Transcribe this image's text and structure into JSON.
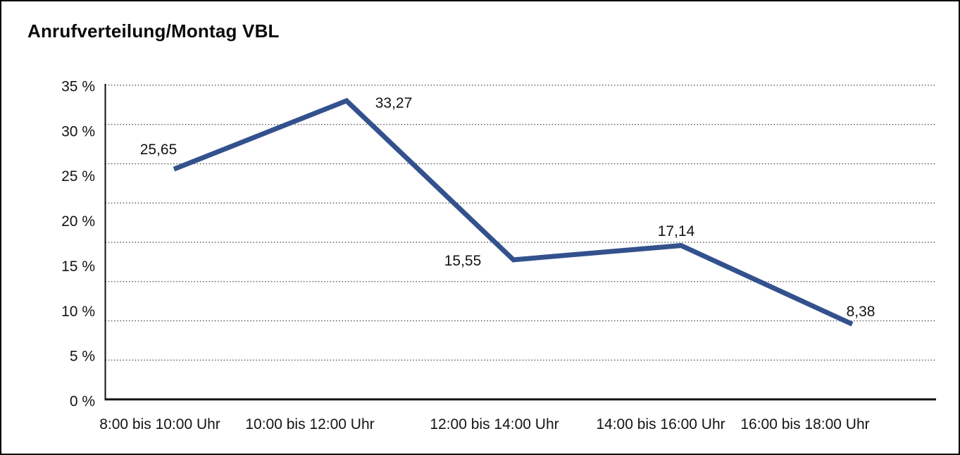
{
  "chart_data": {
    "type": "line",
    "title": "Anrufverteilung/Montag VBL",
    "categories": [
      "8:00 bis 10:00 Uhr",
      "10:00 bis 12:00 Uhr",
      "12:00 bis 14:00 Uhr",
      "14:00 bis 16:00 Uhr",
      "16:00 bis 18:00 Uhr"
    ],
    "series": [
      {
        "values": [
          25.65,
          33.27,
          15.55,
          17.14,
          8.38
        ],
        "point_labels": [
          "25,65",
          "33,27",
          "15,55",
          "17,14",
          "8,38"
        ],
        "color": "#33518d"
      }
    ],
    "y_axis": {
      "ticks": [
        "35 %",
        "30 %",
        "25 %",
        "20 %",
        "15 %",
        "10 %",
        "5 %",
        "0 %"
      ],
      "min": 0,
      "max": 35,
      "unit": "%"
    },
    "grid": {
      "orientation": "horizontal",
      "style": "dotted"
    },
    "legend": "none",
    "colors": {
      "line": "#33518d",
      "axis": "#111111",
      "gridline": "#454545",
      "text": "#141414",
      "frame_border": "#000000",
      "background": "#ffffff"
    }
  }
}
